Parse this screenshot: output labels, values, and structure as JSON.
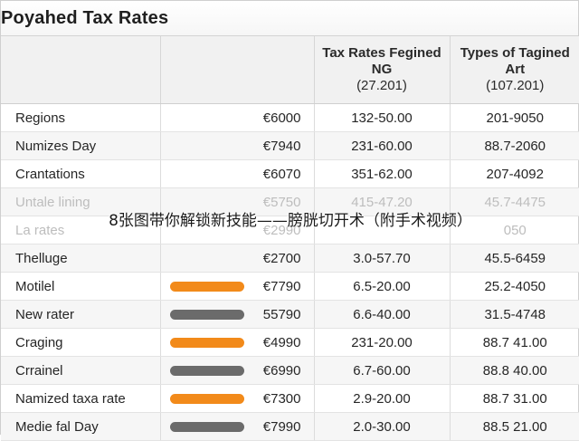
{
  "window": {
    "title": "Poyahed Tax Rates"
  },
  "table": {
    "headers": [
      {
        "main": "",
        "sub": ""
      },
      {
        "main": "",
        "sub": ""
      },
      {
        "main": "Tax Rates Fegined NG",
        "sub": "(27.201)"
      },
      {
        "main": "Types of Tagined Art",
        "sub": "(107.201)"
      }
    ],
    "rows": [
      {
        "region": "Regions",
        "bar": null,
        "amount": "€6000",
        "range": "132-50.00",
        "types": "201-9050",
        "faded": false
      },
      {
        "region": "Numizes Day",
        "bar": null,
        "amount": "€7940",
        "range": "231-60.00",
        "types": "88.7-2060",
        "faded": false
      },
      {
        "region": "Crantations",
        "bar": null,
        "amount": "€6070",
        "range": "351-62.00",
        "types": "207-4092",
        "faded": false
      },
      {
        "region": "Untale lining",
        "bar": null,
        "amount": "€5750",
        "range": "415-47.20",
        "types": "45.7-4475",
        "faded": true
      },
      {
        "region": "La rates",
        "bar": null,
        "amount": "€2990",
        "range": "",
        "types": "050",
        "faded": true
      },
      {
        "region": "Thelluge",
        "bar": null,
        "amount": "€2700",
        "range": "3.0-57.70",
        "types": "45.5-6459",
        "faded": false
      },
      {
        "region": "Motilel",
        "bar": "#f28a1a",
        "amount": "€7790",
        "range": "6.5-20.00",
        "types": "25.2-4050",
        "faded": false
      },
      {
        "region": "New rater",
        "bar": "#6b6b6b",
        "amount": "55790",
        "range": "6.6-40.00",
        "types": "31.5-4748",
        "faded": false
      },
      {
        "region": "Craging",
        "bar": "#f28a1a",
        "amount": "€4990",
        "range": "231-20.00",
        "types": "88.7 41.00",
        "faded": false
      },
      {
        "region": "Crrainel",
        "bar": "#6b6b6b",
        "amount": "€6990",
        "range": "6.7-60.00",
        "types": "88.8 40.00",
        "faded": false
      },
      {
        "region": "Namized taxa rate",
        "bar": "#f28a1a",
        "amount": "€7300",
        "range": "2.9-20.00",
        "types": "88.7 31.00",
        "faded": false
      },
      {
        "region": "Medie fal Day",
        "bar": "#6b6b6b",
        "amount": "€7990",
        "range": "2.0-30.00",
        "types": "88.5 21.00",
        "faded": false
      }
    ]
  },
  "overlay_text": "8张图带你解锁新技能——膀胱切开术（附手术视频）",
  "colors": {
    "accent_orange": "#f28a1a",
    "bar_gray": "#6b6b6b"
  }
}
